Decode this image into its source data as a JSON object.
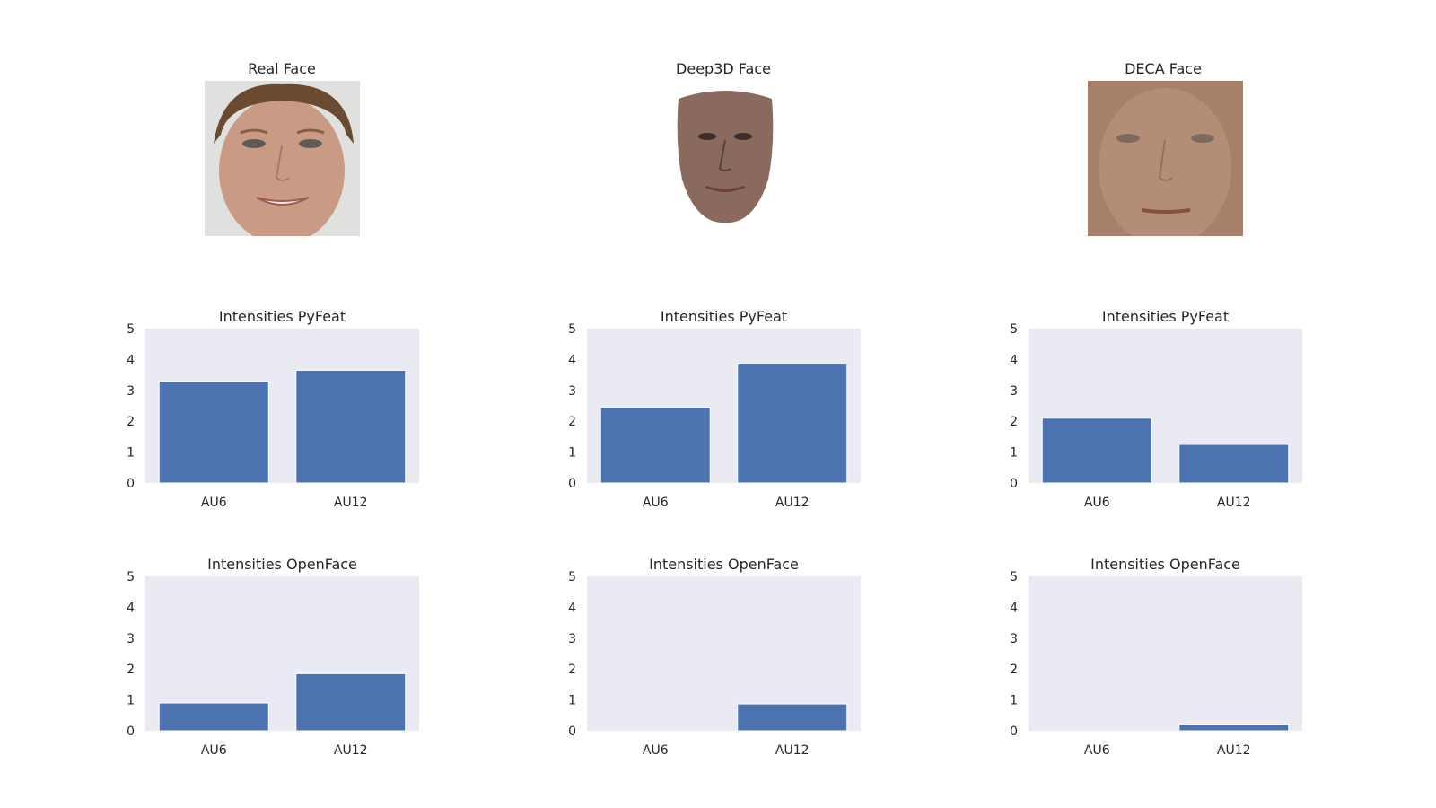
{
  "faces": [
    {
      "title": "Real Face",
      "icon": "real-face-photo",
      "bg": "#e0e1df",
      "skin": "#c99a84",
      "hair": "#6b4a32"
    },
    {
      "title": "Deep3D Face",
      "icon": "deep3d-face-render",
      "bg": "#ffffff",
      "skin": "#8a6a5e",
      "hair": ""
    },
    {
      "title": "DECA Face",
      "icon": "deca-face-render",
      "bg": "#a6806a",
      "skin": "#b48d76",
      "hair": ""
    }
  ],
  "bar_color": "#4c72b0",
  "plot_bg": "#eaeaf2",
  "chart_data": [
    {
      "type": "bar",
      "title": "Intensities PyFeat",
      "categories": [
        "AU6",
        "AU12"
      ],
      "values": [
        3.3,
        3.65
      ],
      "ylim": [
        0,
        5
      ],
      "yticks": [
        "0",
        "1",
        "2",
        "3",
        "4",
        "5"
      ],
      "grid": false
    },
    {
      "type": "bar",
      "title": "Intensities PyFeat",
      "categories": [
        "AU6",
        "AU12"
      ],
      "values": [
        2.45,
        3.85
      ],
      "ylim": [
        0,
        5
      ],
      "yticks": [
        "0",
        "1",
        "2",
        "3",
        "4",
        "5"
      ],
      "grid": false
    },
    {
      "type": "bar",
      "title": "Intensities PyFeat",
      "categories": [
        "AU6",
        "AU12"
      ],
      "values": [
        2.1,
        1.25
      ],
      "ylim": [
        0,
        5
      ],
      "yticks": [
        "0",
        "1",
        "2",
        "3",
        "4",
        "5"
      ],
      "grid": false
    },
    {
      "type": "bar",
      "title": "Intensities OpenFace",
      "categories": [
        "AU6",
        "AU12"
      ],
      "values": [
        0.9,
        1.85
      ],
      "ylim": [
        0,
        5
      ],
      "yticks": [
        "0",
        "1",
        "2",
        "3",
        "4",
        "5"
      ],
      "grid": false
    },
    {
      "type": "bar",
      "title": "Intensities OpenFace",
      "categories": [
        "AU6",
        "AU12"
      ],
      "values": [
        0.0,
        0.87
      ],
      "ylim": [
        0,
        5
      ],
      "yticks": [
        "0",
        "1",
        "2",
        "3",
        "4",
        "5"
      ],
      "grid": false
    },
    {
      "type": "bar",
      "title": "Intensities OpenFace",
      "categories": [
        "AU6",
        "AU12"
      ],
      "values": [
        0.0,
        0.22
      ],
      "ylim": [
        0,
        5
      ],
      "yticks": [
        "0",
        "1",
        "2",
        "3",
        "4",
        "5"
      ],
      "grid": false
    }
  ]
}
